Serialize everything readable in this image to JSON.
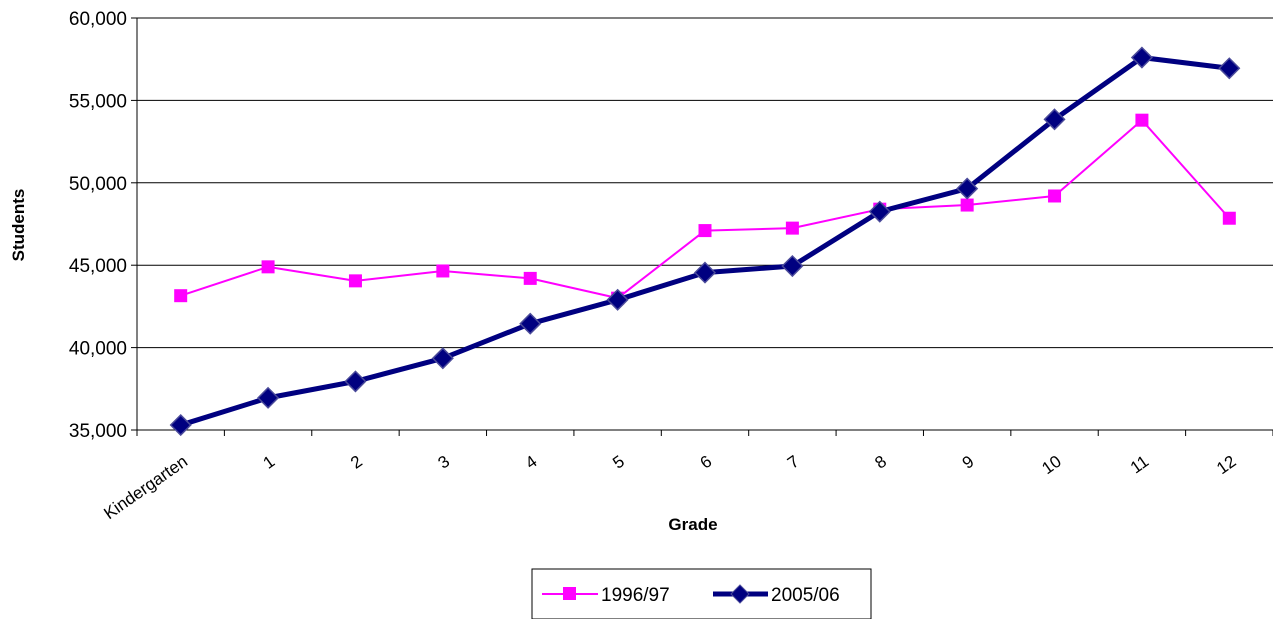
{
  "chart_data": {
    "type": "line",
    "xlabel": "Grade",
    "ylabel": "Students",
    "ylim": [
      35000,
      60000
    ],
    "yticks": [
      35000,
      40000,
      45000,
      50000,
      55000,
      60000
    ],
    "ytick_labels": [
      "35,000",
      "40,000",
      "45,000",
      "50,000",
      "55,000",
      "60,000"
    ],
    "grid": "horizontal",
    "legend_position": "bottom",
    "categories": [
      "Kindergarten",
      "1",
      "2",
      "3",
      "4",
      "5",
      "6",
      "7",
      "8",
      "9",
      "10",
      "11",
      "12"
    ],
    "series": [
      {
        "name": "1996/97",
        "color": "#FF00FF",
        "marker": "square",
        "values": [
          43150,
          44900,
          44050,
          44650,
          44200,
          43000,
          47100,
          47250,
          48400,
          48650,
          49200,
          53800,
          47850
        ]
      },
      {
        "name": "2005/06",
        "color": "#000080",
        "marker": "diamond",
        "values": [
          35300,
          36950,
          37950,
          39350,
          41450,
          42900,
          44550,
          44950,
          48250,
          49650,
          53850,
          57600,
          56950
        ]
      }
    ]
  }
}
